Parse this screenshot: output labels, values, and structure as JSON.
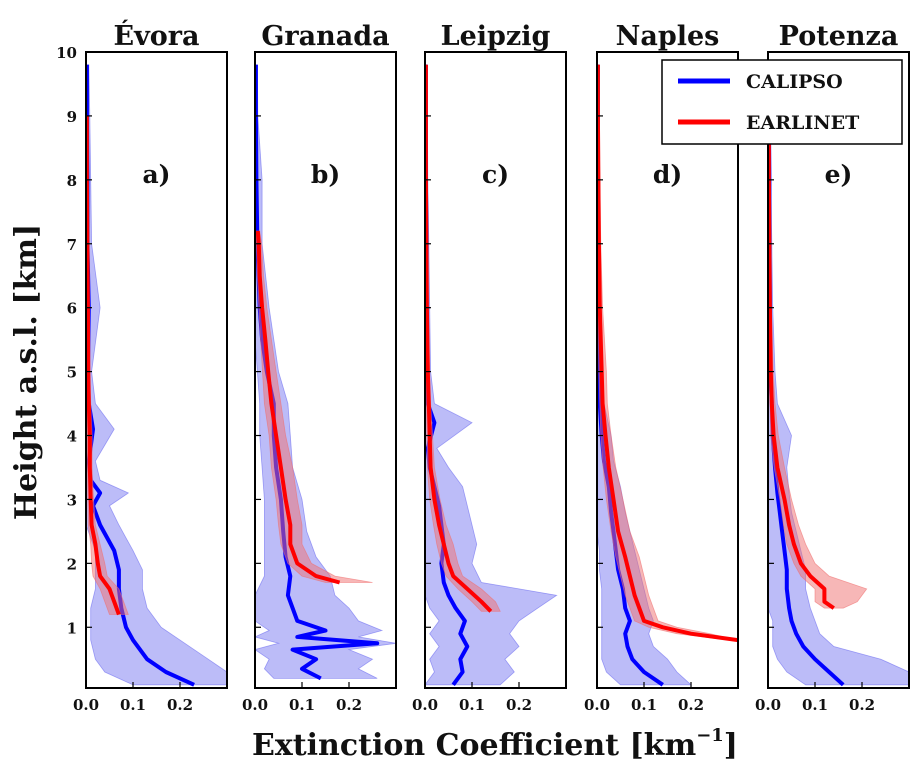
{
  "figure": {
    "ylabel": "Height a.s.l. [km]",
    "xlabel": "Extinction Coefficient [km",
    "xlabel_exp": "−1",
    "xlabel_close": "]"
  },
  "legend": {
    "position": "top-right",
    "items": [
      {
        "label": "CALIPSO",
        "color": "#0000ff"
      },
      {
        "label": "EARLINET",
        "color": "#ff0000"
      }
    ]
  },
  "colors": {
    "calipso": "#0000ff",
    "calipso_band": "#6b6bf0",
    "earlinet": "#ff0000",
    "earlinet_band": "#f07070"
  },
  "chart_data": [
    {
      "type": "line",
      "title": "Évora",
      "panel_label": "a)",
      "xlim": [
        0,
        0.3
      ],
      "ylim": [
        0.05,
        10
      ],
      "xticks": [
        "0.0",
        "0.1",
        "0.2"
      ],
      "yticks": [
        "1",
        "2",
        "3",
        "4",
        "5",
        "6",
        "7",
        "8",
        "9",
        "10"
      ],
      "series": [
        {
          "name": "CALIPSO",
          "y": [
            0.1,
            0.3,
            0.5,
            0.8,
            1.0,
            1.3,
            1.6,
            1.9,
            2.2,
            2.6,
            2.9,
            3.1,
            3.3,
            3.6,
            4.1,
            4.5,
            5.0,
            6.0,
            7.0,
            8.0,
            9.0,
            9.8
          ],
          "x": [
            0.23,
            0.17,
            0.13,
            0.1,
            0.085,
            0.075,
            0.07,
            0.07,
            0.06,
            0.03,
            0.015,
            0.03,
            0.01,
            0.006,
            0.015,
            0.006,
            0.004,
            0.006,
            0.003,
            0.003,
            0.002,
            0.002
          ],
          "lower": [
            0.1,
            0.04,
            0.02,
            0.01,
            0.01,
            0.01,
            0.02,
            0.02,
            0.02,
            0.0,
            0.0,
            0.0,
            0.0,
            0.0,
            0.0,
            0.0,
            0.0,
            0.0,
            0.0,
            0.0,
            0.0,
            0.0
          ],
          "upper": [
            0.3,
            0.3,
            0.26,
            0.2,
            0.16,
            0.13,
            0.12,
            0.12,
            0.1,
            0.07,
            0.05,
            0.09,
            0.03,
            0.02,
            0.06,
            0.02,
            0.012,
            0.03,
            0.012,
            0.01,
            0.008,
            0.006
          ]
        },
        {
          "name": "EARLINET",
          "y": [
            1.2,
            1.4,
            1.6,
            1.8,
            2.0,
            2.3,
            2.6,
            3.0,
            3.5,
            4.0,
            4.5,
            5.0,
            6.0,
            7.0,
            8.0,
            9.0
          ],
          "x": [
            0.07,
            0.06,
            0.05,
            0.03,
            0.025,
            0.02,
            0.012,
            0.01,
            0.008,
            0.008,
            0.006,
            0.005,
            0.004,
            0.003,
            0.002,
            0.002
          ],
          "lower": [
            0.05,
            0.04,
            0.03,
            0.015,
            0.012,
            0.01,
            0.005,
            0.004,
            0.003,
            0.003,
            0.002,
            0.002,
            0.001,
            0.001,
            0.0,
            0.0
          ],
          "upper": [
            0.09,
            0.08,
            0.07,
            0.045,
            0.04,
            0.03,
            0.02,
            0.016,
            0.013,
            0.013,
            0.01,
            0.008,
            0.007,
            0.005,
            0.004,
            0.004
          ]
        }
      ]
    },
    {
      "type": "line",
      "title": "Granada",
      "panel_label": "b)",
      "xlim": [
        0,
        0.3
      ],
      "ylim": [
        0.05,
        10
      ],
      "xticks": [
        "0.0",
        "0.1",
        "0.2"
      ],
      "yticks": [],
      "series": [
        {
          "name": "CALIPSO",
          "y": [
            0.2,
            0.35,
            0.5,
            0.65,
            0.75,
            0.85,
            0.95,
            1.1,
            1.3,
            1.5,
            1.8,
            2.1,
            2.5,
            3.0,
            3.5,
            4.0,
            4.5,
            5.0,
            5.5,
            6.0,
            7.0,
            8.0,
            9.0,
            9.8
          ],
          "x": [
            0.14,
            0.1,
            0.13,
            0.08,
            0.26,
            0.09,
            0.15,
            0.09,
            0.08,
            0.07,
            0.075,
            0.065,
            0.06,
            0.055,
            0.045,
            0.04,
            0.04,
            0.025,
            0.015,
            0.01,
            0.005,
            0.003,
            0.002,
            0.002
          ],
          "lower": [
            0.04,
            0.02,
            0.03,
            0.0,
            0.05,
            0.0,
            0.03,
            0.0,
            0.0,
            0.0,
            0.02,
            0.02,
            0.02,
            0.02,
            0.015,
            0.01,
            0.01,
            0.005,
            0.0,
            0.0,
            0.0,
            0.0,
            0.0,
            0.0
          ],
          "upper": [
            0.26,
            0.22,
            0.25,
            0.2,
            0.3,
            0.22,
            0.27,
            0.22,
            0.2,
            0.17,
            0.16,
            0.13,
            0.11,
            0.1,
            0.08,
            0.075,
            0.07,
            0.05,
            0.04,
            0.03,
            0.015,
            0.015,
            0.006,
            0.005
          ]
        },
        {
          "name": "EARLINET",
          "y": [
            1.7,
            1.8,
            2.0,
            2.3,
            2.6,
            3.0,
            3.5,
            4.0,
            4.5,
            5.0,
            5.5,
            6.0,
            6.5,
            7.0,
            7.2
          ],
          "x": [
            0.18,
            0.13,
            0.09,
            0.075,
            0.075,
            0.065,
            0.055,
            0.045,
            0.035,
            0.028,
            0.022,
            0.015,
            0.01,
            0.008,
            0.006
          ],
          "lower": [
            0.15,
            0.1,
            0.07,
            0.055,
            0.05,
            0.045,
            0.035,
            0.03,
            0.02,
            0.016,
            0.012,
            0.008,
            0.005,
            0.003,
            0.002
          ],
          "upper": [
            0.25,
            0.17,
            0.12,
            0.1,
            0.1,
            0.09,
            0.08,
            0.065,
            0.055,
            0.045,
            0.035,
            0.025,
            0.018,
            0.014,
            0.01
          ]
        }
      ]
    },
    {
      "type": "line",
      "title": "Leipzig",
      "panel_label": "c)",
      "xlim": [
        0,
        0.3
      ],
      "ylim": [
        0.05,
        10
      ],
      "xticks": [
        "0.0",
        "0.1",
        "0.2"
      ],
      "yticks": [],
      "series": [
        {
          "name": "CALIPSO",
          "y": [
            0.1,
            0.3,
            0.5,
            0.7,
            0.9,
            1.1,
            1.3,
            1.5,
            1.7,
            2.0,
            2.3,
            2.6,
            2.9,
            3.2,
            3.5,
            3.8,
            4.2,
            4.5,
            5.0,
            6.0,
            7.0,
            8.0,
            9.0,
            9.8
          ],
          "x": [
            0.06,
            0.08,
            0.075,
            0.09,
            0.075,
            0.085,
            0.065,
            0.05,
            0.04,
            0.035,
            0.04,
            0.035,
            0.03,
            0.02,
            0.01,
            0.006,
            0.02,
            0.006,
            0.004,
            0.003,
            0.003,
            0.002,
            0.002,
            0.002
          ],
          "lower": [
            0.0,
            0.02,
            0.01,
            0.03,
            0.01,
            0.03,
            0.01,
            0.0,
            0.0,
            0.0,
            0.0,
            0.0,
            0.0,
            0.0,
            0.0,
            0.0,
            0.0,
            0.0,
            0.0,
            0.0,
            0.0,
            0.0,
            0.0,
            0.0
          ],
          "upper": [
            0.16,
            0.19,
            0.17,
            0.2,
            0.18,
            0.2,
            0.24,
            0.28,
            0.12,
            0.1,
            0.11,
            0.1,
            0.09,
            0.08,
            0.05,
            0.025,
            0.1,
            0.02,
            0.012,
            0.01,
            0.008,
            0.006,
            0.005,
            0.004
          ]
        },
        {
          "name": "EARLINET",
          "y": [
            1.25,
            1.4,
            1.6,
            1.8,
            2.0,
            2.3,
            2.6,
            3.0,
            3.5,
            4.0,
            4.5,
            5.0,
            6.0,
            7.0,
            8.0,
            9.0,
            9.8
          ],
          "x": [
            0.14,
            0.12,
            0.09,
            0.06,
            0.05,
            0.04,
            0.03,
            0.02,
            0.012,
            0.01,
            0.008,
            0.006,
            0.004,
            0.003,
            0.002,
            0.002,
            0.002
          ],
          "lower": [
            0.12,
            0.1,
            0.07,
            0.045,
            0.035,
            0.025,
            0.018,
            0.01,
            0.005,
            0.004,
            0.003,
            0.002,
            0.001,
            0.0,
            0.0,
            0.0,
            0.0
          ],
          "upper": [
            0.16,
            0.15,
            0.12,
            0.08,
            0.07,
            0.06,
            0.045,
            0.032,
            0.02,
            0.016,
            0.012,
            0.01,
            0.007,
            0.005,
            0.004,
            0.003,
            0.003
          ]
        }
      ]
    },
    {
      "type": "line",
      "title": "Naples",
      "panel_label": "d)",
      "xlim": [
        0,
        0.3
      ],
      "ylim": [
        0.05,
        10
      ],
      "xticks": [
        "0.0",
        "0.1",
        "0.2"
      ],
      "yticks": [],
      "series": [
        {
          "name": "CALIPSO",
          "y": [
            0.1,
            0.3,
            0.5,
            0.7,
            0.9,
            1.1,
            1.3,
            1.6,
            1.9,
            2.2,
            2.5,
            2.8,
            3.2,
            3.6,
            4.0,
            4.5,
            5.0,
            6.0,
            7.0,
            8.0,
            9.0,
            9.8
          ],
          "x": [
            0.14,
            0.1,
            0.075,
            0.065,
            0.06,
            0.07,
            0.06,
            0.055,
            0.045,
            0.04,
            0.035,
            0.03,
            0.025,
            0.015,
            0.01,
            0.006,
            0.004,
            0.003,
            0.003,
            0.002,
            0.002,
            0.002
          ],
          "lower": [
            0.05,
            0.02,
            0.01,
            0.01,
            0.01,
            0.01,
            0.01,
            0.01,
            0.005,
            0.005,
            0.0,
            0.0,
            0.0,
            0.0,
            0.0,
            0.0,
            0.0,
            0.0,
            0.0,
            0.0,
            0.0,
            0.0
          ],
          "upper": [
            0.2,
            0.17,
            0.15,
            0.12,
            0.11,
            0.12,
            0.11,
            0.1,
            0.09,
            0.08,
            0.07,
            0.06,
            0.05,
            0.035,
            0.03,
            0.015,
            0.01,
            0.008,
            0.006,
            0.005,
            0.005,
            0.004
          ]
        },
        {
          "name": "EARLINET",
          "y": [
            0.8,
            0.9,
            1.0,
            1.1,
            1.3,
            1.5,
            1.8,
            2.1,
            2.5,
            3.0,
            3.5,
            4.0,
            4.5,
            5.0,
            6.0,
            7.0,
            8.0,
            9.0,
            9.8
          ],
          "x": [
            0.3,
            0.2,
            0.14,
            0.1,
            0.09,
            0.08,
            0.07,
            0.06,
            0.045,
            0.035,
            0.025,
            0.018,
            0.012,
            0.01,
            0.006,
            0.004,
            0.003,
            0.002,
            0.002
          ],
          "lower": [
            0.28,
            0.17,
            0.11,
            0.08,
            0.07,
            0.06,
            0.05,
            0.04,
            0.03,
            0.02,
            0.013,
            0.008,
            0.006,
            0.004,
            0.002,
            0.001,
            0.0,
            0.0,
            0.0
          ],
          "upper": [
            0.3,
            0.24,
            0.17,
            0.13,
            0.12,
            0.11,
            0.1,
            0.09,
            0.07,
            0.055,
            0.04,
            0.03,
            0.022,
            0.02,
            0.012,
            0.008,
            0.006,
            0.004,
            0.004
          ]
        }
      ]
    },
    {
      "type": "line",
      "title": "Potenza",
      "panel_label": "e)",
      "xlim": [
        0,
        0.3
      ],
      "ylim": [
        0.05,
        10
      ],
      "xticks": [
        "0.0",
        "0.1",
        "0.2"
      ],
      "yticks": [],
      "series": [
        {
          "name": "CALIPSO",
          "y": [
            0.1,
            0.3,
            0.5,
            0.7,
            0.9,
            1.1,
            1.3,
            1.6,
            1.9,
            2.2,
            2.5,
            2.8,
            3.1,
            3.5,
            4.0,
            4.5,
            5.0,
            6.0,
            7.0,
            8.0,
            9.0,
            9.8
          ],
          "x": [
            0.16,
            0.13,
            0.1,
            0.075,
            0.06,
            0.05,
            0.045,
            0.04,
            0.04,
            0.035,
            0.03,
            0.025,
            0.02,
            0.015,
            0.01,
            0.008,
            0.005,
            0.004,
            0.003,
            0.003,
            0.002,
            0.002
          ],
          "lower": [
            0.08,
            0.04,
            0.02,
            0.01,
            0.01,
            0.01,
            0.0,
            0.0,
            0.0,
            0.0,
            0.0,
            0.0,
            0.0,
            0.0,
            0.0,
            0.0,
            0.0,
            0.0,
            0.0,
            0.0,
            0.0,
            0.0
          ],
          "upper": [
            0.3,
            0.3,
            0.24,
            0.14,
            0.11,
            0.1,
            0.09,
            0.08,
            0.08,
            0.07,
            0.06,
            0.05,
            0.045,
            0.04,
            0.05,
            0.02,
            0.015,
            0.01,
            0.008,
            0.006,
            0.005,
            0.004
          ]
        },
        {
          "name": "EARLINET",
          "y": [
            1.3,
            1.4,
            1.6,
            1.8,
            2.0,
            2.3,
            2.6,
            3.0,
            3.5,
            4.0,
            4.5,
            5.0,
            6.0,
            7.0,
            8.0,
            9.0,
            9.8
          ],
          "x": [
            0.14,
            0.12,
            0.12,
            0.09,
            0.07,
            0.055,
            0.045,
            0.035,
            0.02,
            0.012,
            0.008,
            0.006,
            0.004,
            0.003,
            0.002,
            0.002,
            0.002
          ],
          "lower": [
            0.12,
            0.1,
            0.1,
            0.07,
            0.055,
            0.04,
            0.033,
            0.025,
            0.013,
            0.006,
            0.004,
            0.003,
            0.002,
            0.001,
            0.0,
            0.0,
            0.0
          ],
          "upper": [
            0.16,
            0.19,
            0.21,
            0.13,
            0.1,
            0.08,
            0.065,
            0.05,
            0.035,
            0.022,
            0.015,
            0.011,
            0.007,
            0.005,
            0.004,
            0.003,
            0.003
          ]
        }
      ]
    }
  ]
}
